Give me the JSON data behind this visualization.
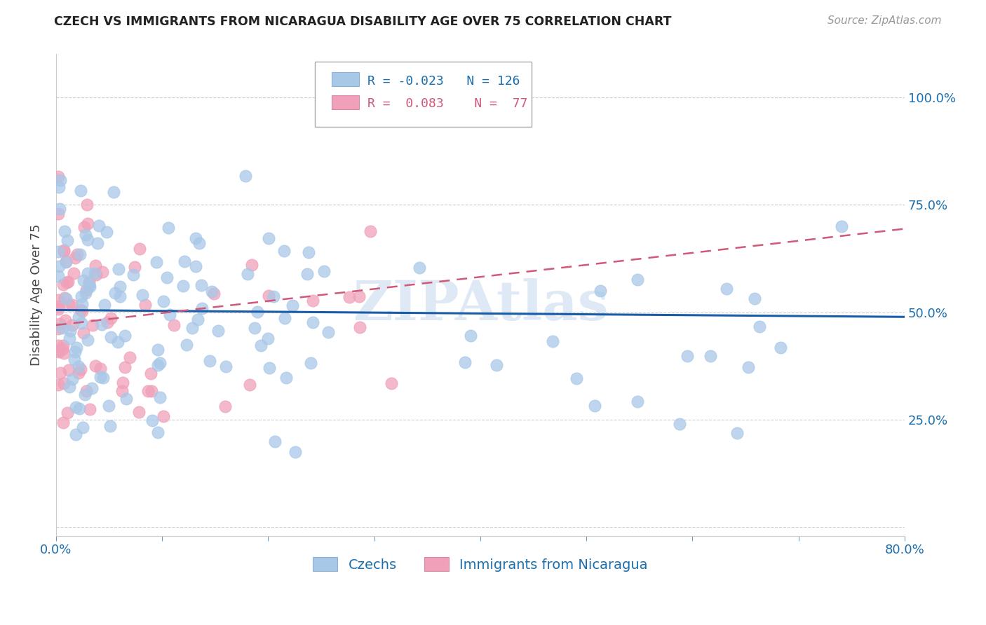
{
  "title": "CZECH VS IMMIGRANTS FROM NICARAGUA DISABILITY AGE OVER 75 CORRELATION CHART",
  "source": "Source: ZipAtlas.com",
  "ylabel": "Disability Age Over 75",
  "xlim": [
    0.0,
    0.8
  ],
  "ylim": [
    -0.02,
    1.1
  ],
  "blue_color": "#a8c8e8",
  "pink_color": "#f0a0b8",
  "blue_line_color": "#1a5ca8",
  "pink_line_color": "#d05878",
  "legend_R1": "-0.023",
  "legend_N1": "126",
  "legend_R2": "0.083",
  "legend_N2": "77",
  "label1": "Czechs",
  "label2": "Immigrants from Nicaragua",
  "watermark": "ZIPAtlas",
  "title_color": "#222222",
  "tick_color": "#1a6faf",
  "grid_color": "#cccccc"
}
